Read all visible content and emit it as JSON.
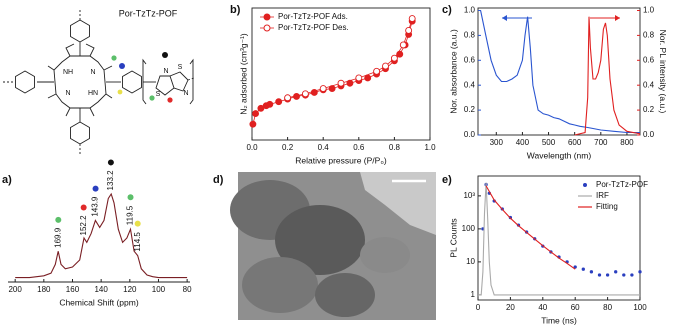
{
  "structure": {
    "label": "Por-TzTz-POF",
    "atoms": [
      "NH",
      "N",
      "N",
      "HN",
      "N",
      "S",
      "S",
      "N"
    ]
  },
  "tem": {
    "panel_label": "d)"
  },
  "chart_data": [
    {
      "type": "line",
      "panel_label": "a)",
      "xlabel": "Chemical Shift (ppm)",
      "frame": false,
      "xlim": [
        205,
        78
      ],
      "xticks": [
        200,
        180,
        160,
        140,
        120,
        100,
        80
      ],
      "ylim": [
        0,
        1.25
      ],
      "series": [
        {
          "color": "#7a1f24",
          "line": true,
          "x": [
            200,
            195,
            190,
            185,
            180,
            175,
            172,
            170,
            168,
            165,
            160,
            155,
            152,
            150,
            147,
            144,
            141,
            138,
            135,
            133,
            131,
            128,
            125,
            122,
            119.5,
            117,
            114.5,
            112,
            108,
            104,
            100,
            95,
            90,
            85,
            80
          ],
          "values": [
            0.05,
            0.05,
            0.05,
            0.06,
            0.07,
            0.1,
            0.2,
            0.35,
            0.2,
            0.15,
            0.17,
            0.25,
            0.5,
            0.45,
            0.55,
            0.7,
            0.62,
            0.7,
            0.95,
            1.0,
            0.9,
            0.6,
            0.45,
            0.5,
            0.6,
            0.35,
            0.3,
            0.15,
            0.08,
            0.06,
            0.05,
            0.05,
            0.05,
            0.05,
            0.05
          ]
        }
      ],
      "peaks": [
        {
          "x": 169.9,
          "color": "#5cbf6a"
        },
        {
          "x": 152.2,
          "color": "#e02a2a"
        },
        {
          "x": 143.9,
          "color": "#2a3fbf"
        },
        {
          "x": 133.2,
          "color": "#111111"
        },
        {
          "x": 119.5,
          "color": "#5cbf6a"
        },
        {
          "x": 114.5,
          "color": "#e8e04a"
        }
      ]
    },
    {
      "type": "scatter",
      "panel_label": "b)",
      "xlabel": "Relative pressure (P/P₀)",
      "ylabel": "N₂ adsorbed (cm³g⁻¹)",
      "frame": true,
      "xlim": [
        0,
        1
      ],
      "xticks": [
        {
          "value": 0,
          "label": "0.0"
        },
        0.2,
        0.4,
        0.6,
        0.8,
        {
          "value": 1,
          "label": "1.0"
        }
      ],
      "ylim": [
        0,
        1
      ],
      "legend": "upper left",
      "series": [
        {
          "name": "Por-TzTz-POF Ads.",
          "color": "#e02020",
          "marker": "filled",
          "line": true,
          "x": [
            0.005,
            0.02,
            0.05,
            0.08,
            0.1,
            0.15,
            0.2,
            0.25,
            0.3,
            0.35,
            0.4,
            0.45,
            0.5,
            0.55,
            0.6,
            0.65,
            0.7,
            0.75,
            0.8,
            0.83,
            0.86,
            0.88,
            0.9
          ],
          "values": [
            0.12,
            0.2,
            0.24,
            0.26,
            0.27,
            0.29,
            0.31,
            0.33,
            0.34,
            0.36,
            0.38,
            0.39,
            0.41,
            0.43,
            0.45,
            0.47,
            0.5,
            0.54,
            0.6,
            0.65,
            0.72,
            0.8,
            0.9
          ]
        },
        {
          "name": "Por-TzTz-POF Des.",
          "color": "#e02020",
          "marker": "open",
          "line": true,
          "x": [
            0.9,
            0.88,
            0.85,
            0.8,
            0.75,
            0.7,
            0.6,
            0.5,
            0.4,
            0.3,
            0.2
          ],
          "values": [
            0.92,
            0.83,
            0.72,
            0.62,
            0.56,
            0.52,
            0.47,
            0.43,
            0.39,
            0.35,
            0.32
          ]
        }
      ]
    },
    {
      "type": "line",
      "panel_label": "c)",
      "xlabel": "Wavelength (nm)",
      "ylabel": "Nor. absorbance (a.u.)",
      "y2label": "Nor. PL intensity (a.u.)",
      "ylabel_color": "#2a55d0",
      "y2label_color": "#e02020",
      "frame": true,
      "xlim": [
        230,
        850
      ],
      "xticks": [
        300,
        400,
        500,
        600,
        700,
        800
      ],
      "ylim": [
        0,
        1.02
      ],
      "yticks": [
        {
          "value": 0,
          "label": "0.0"
        },
        0.2,
        0.4,
        0.6,
        0.8,
        {
          "value": 1,
          "label": "1.0"
        }
      ],
      "y2lim": [
        0,
        1.02
      ],
      "y2ticks": [
        {
          "value": 0,
          "label": "0.0"
        },
        0.2,
        0.4,
        0.6,
        0.8,
        {
          "value": 1,
          "label": "1.0"
        }
      ],
      "series": [
        {
          "color": "#2a55d0",
          "line": true,
          "x": [
            240,
            260,
            280,
            300,
            320,
            340,
            360,
            380,
            400,
            410,
            420,
            430,
            440,
            460,
            480,
            500,
            520,
            540,
            560,
            580,
            600,
            620,
            650,
            700,
            750,
            800,
            850
          ],
          "values": [
            1.0,
            0.8,
            0.6,
            0.48,
            0.43,
            0.43,
            0.45,
            0.48,
            0.6,
            0.8,
            0.95,
            0.7,
            0.4,
            0.2,
            0.17,
            0.16,
            0.14,
            0.13,
            0.11,
            0.09,
            0.08,
            0.07,
            0.06,
            0.04,
            0.03,
            0.02,
            0.02
          ]
        },
        {
          "color": "#e02020",
          "line": true,
          "axis": "y2",
          "x": [
            600,
            640,
            650,
            655,
            660,
            670,
            680,
            690,
            700,
            710,
            718,
            725,
            735,
            750,
            770,
            800,
            850
          ],
          "values": [
            0,
            0.02,
            0.3,
            0.95,
            0.7,
            0.45,
            0.45,
            0.5,
            0.6,
            0.85,
            0.9,
            0.8,
            0.45,
            0.2,
            0.08,
            0.03,
            0.01
          ]
        }
      ]
    },
    {
      "type": "scatter",
      "panel_label": "e)",
      "xlabel": "Time (ns)",
      "ylabel": "PL Counts",
      "frame": true,
      "ylog": true,
      "xlim": [
        0,
        100
      ],
      "xticks": [
        0,
        20,
        40,
        60,
        80,
        100
      ],
      "ylim": [
        0.7,
        4000
      ],
      "yticks": [
        1,
        10,
        100,
        {
          "value": 1000,
          "label": "10³"
        }
      ],
      "legend": "upper right",
      "series": [
        {
          "name": "Por-TzTz-POF",
          "color": "#2a3fbf",
          "marker": "dot",
          "x": [
            3,
            5,
            7,
            10,
            15,
            20,
            25,
            30,
            35,
            40,
            45,
            50,
            55,
            60,
            65,
            70,
            75,
            80,
            85,
            90,
            95,
            100
          ],
          "values": [
            100,
            2200,
            1200,
            700,
            400,
            220,
            130,
            80,
            50,
            30,
            20,
            14,
            10,
            7,
            6,
            5,
            4,
            4,
            5,
            4,
            4,
            5
          ]
        },
        {
          "name": "IRF",
          "color": "#aaaaaa",
          "line": true,
          "x": [
            0,
            2,
            3,
            4,
            5,
            6,
            7,
            8,
            10,
            20,
            40,
            60,
            80,
            100
          ],
          "values": [
            1,
            1,
            5,
            300,
            2500,
            200,
            10,
            2,
            1,
            1,
            1,
            1,
            1,
            1
          ]
        },
        {
          "name": "Fitting",
          "color": "#e02020",
          "line": true,
          "x": [
            5,
            10,
            15,
            20,
            25,
            30,
            35,
            40,
            45,
            50,
            55,
            60
          ],
          "values": [
            2000,
            750,
            390,
            210,
            125,
            78,
            49,
            31,
            20,
            13,
            9,
            6
          ]
        }
      ]
    }
  ]
}
